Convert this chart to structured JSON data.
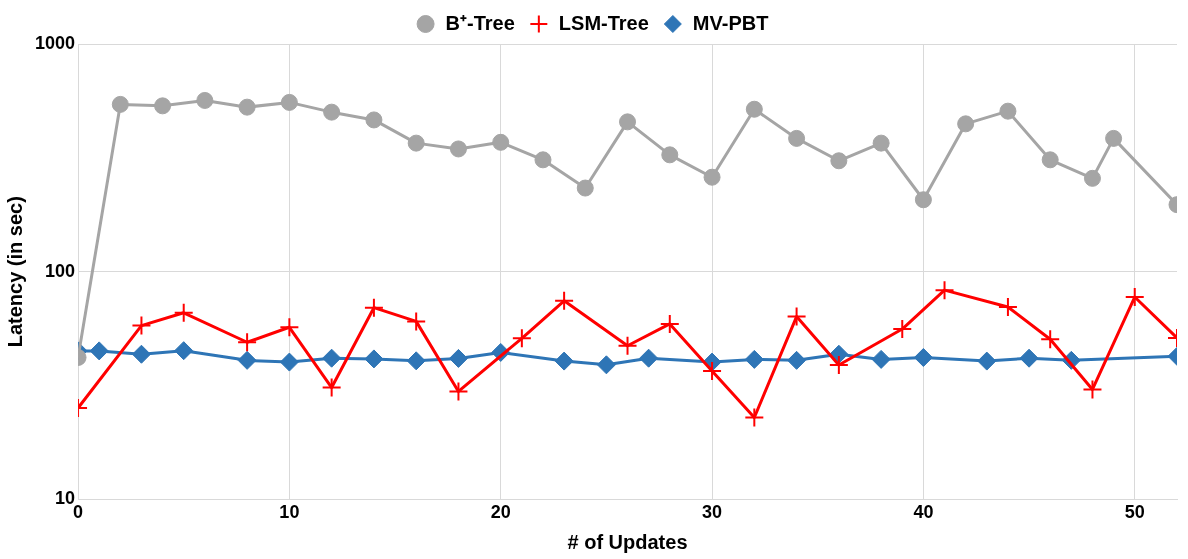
{
  "chart_data": {
    "type": "line",
    "xlabel": "# of Updates",
    "ylabel": "Latency (in sec)",
    "log": "y",
    "grid": true,
    "legend": "top",
    "xlim": [
      0,
      52
    ],
    "xticks": [
      0,
      10,
      20,
      30,
      40,
      50
    ],
    "ylim": [
      10,
      1000
    ],
    "yticks": [
      10,
      100,
      1000
    ],
    "series": [
      {
        "name": "B⁺-Tree",
        "color": "#a5a5a5",
        "marker": "circle",
        "x": [
          0,
          2,
          4,
          6,
          8,
          10,
          12,
          14,
          16,
          18,
          20,
          22,
          24,
          26,
          28,
          30,
          32,
          34,
          36,
          38,
          40,
          42,
          44,
          46,
          48,
          49,
          52
        ],
        "values": [
          42,
          543,
          535,
          565,
          528,
          554,
          502,
          464,
          367,
          346,
          370,
          310,
          233,
          455,
          326,
          260,
          517,
          385,
          307,
          367,
          207,
          446,
          507,
          310,
          257,
          385,
          197
        ]
      },
      {
        "name": "LSM-Tree",
        "color": "#ff0000",
        "marker": "cross",
        "x": [
          0,
          3,
          5,
          8,
          10,
          12,
          14,
          16,
          18,
          21,
          23,
          26,
          28,
          30,
          32,
          34,
          36,
          39,
          41,
          44,
          46,
          48,
          50,
          52
        ],
        "values": [
          25.2,
          58,
          66,
          49,
          57,
          31,
          69.5,
          60.5,
          29.8,
          51,
          74.5,
          47.3,
          59,
          36.6,
          22.9,
          63.5,
          38.9,
          56,
          83,
          70,
          50.5,
          30.4,
          77.4,
          51.2
        ]
      },
      {
        "name": "MV-PBT",
        "color": "#2e75b6",
        "marker": "diamond",
        "x": [
          0,
          1,
          3,
          5,
          8,
          10,
          12,
          14,
          16,
          18,
          20,
          23,
          25,
          27,
          30,
          32,
          34,
          36,
          38,
          40,
          43,
          45,
          47,
          52
        ],
        "values": [
          44.9,
          44.9,
          43.4,
          45,
          40.8,
          40.1,
          41.7,
          41.4,
          40.6,
          41.6,
          44.2,
          40.5,
          39,
          41.7,
          40.1,
          41.2,
          40.8,
          43.4,
          41.2,
          42,
          40.5,
          41.7,
          40.8,
          42.5
        ]
      }
    ]
  }
}
